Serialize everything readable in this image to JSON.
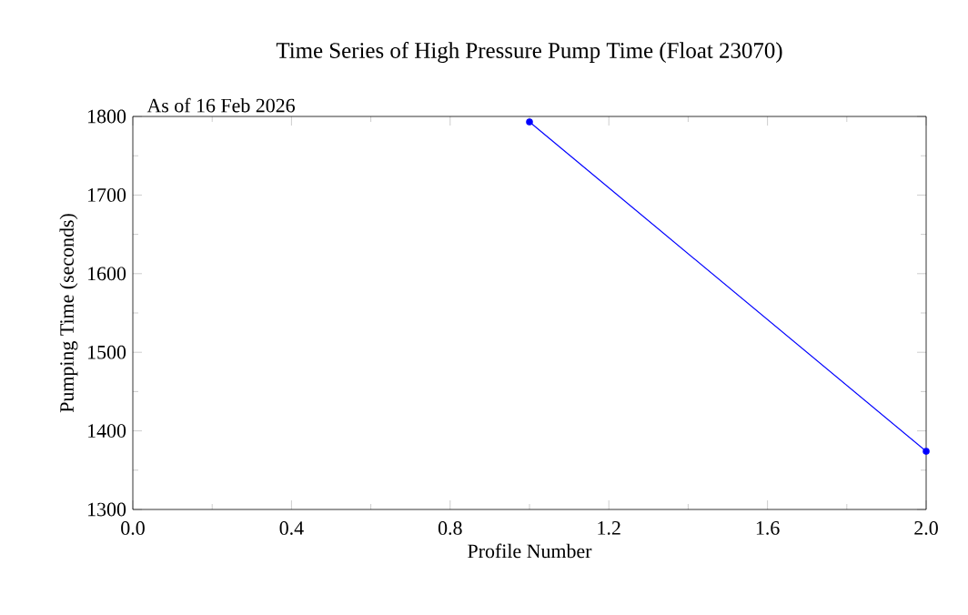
{
  "chart_data": {
    "type": "line",
    "title": "Time Series of High Pressure Pump Time (Float 23070)",
    "subtitle": "As of 16 Feb 2026",
    "xlabel": "Profile Number",
    "ylabel": "Pumping Time (seconds)",
    "x": [
      1,
      2
    ],
    "series": [
      {
        "color": "#0000ff",
        "values": [
          1793,
          1374
        ]
      }
    ],
    "xlim": [
      0,
      2
    ],
    "ylim": [
      1300,
      1800
    ],
    "xticks": [
      {
        "value": 0,
        "label": "0.0"
      },
      {
        "value": 0.4,
        "label": "0.4"
      },
      {
        "value": 0.8,
        "label": "0.8"
      },
      {
        "value": 1.2,
        "label": "1.2"
      },
      {
        "value": 1.6,
        "label": "1.6"
      },
      {
        "value": 2,
        "label": "2.0"
      }
    ],
    "yticks": [
      1300,
      1400,
      1500,
      1600,
      1700,
      1800
    ],
    "marker": "circle",
    "line_style": "solid"
  }
}
